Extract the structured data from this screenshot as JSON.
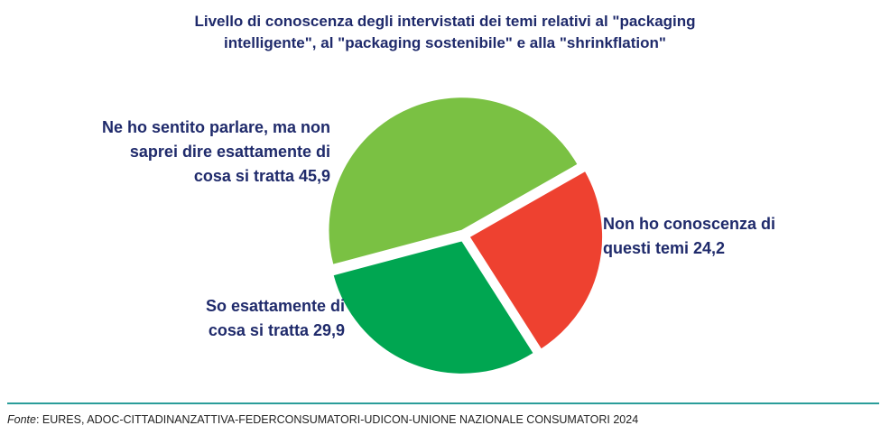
{
  "chart_data": {
    "type": "pie",
    "title_lines": [
      "Livello di conoscenza degli intervistati dei temi relativi al \"packaging",
      "intelligente\", al \"packaging sostenibile\" e alla \"shrinkflation\""
    ],
    "slices": [
      {
        "value": 45.9,
        "color": "#7ac143",
        "label_lines": [
          "Ne ho sentito parlare, ma non",
          "saprei dire esattamente di",
          "cosa si tratta 45,9"
        ]
      },
      {
        "value": 24.2,
        "color": "#ee4130",
        "label_lines": [
          "Non ho conoscenza di",
          "questi temi 24,2"
        ]
      },
      {
        "value": 29.9,
        "color": "#00a651",
        "label_lines": [
          "So esattamente di",
          "cosa si tratta 29,9"
        ]
      }
    ]
  },
  "source": {
    "prefix": "Fonte",
    "text": ": EURES, ADOC-CITTADINANZATTIVA-FEDERCONSUMATORI-UDICON-UNIONE NAZIONALE CONSUMATORI 2024"
  },
  "colors": {
    "title": "#1f2a6b",
    "rule": "#2a9d9a"
  }
}
